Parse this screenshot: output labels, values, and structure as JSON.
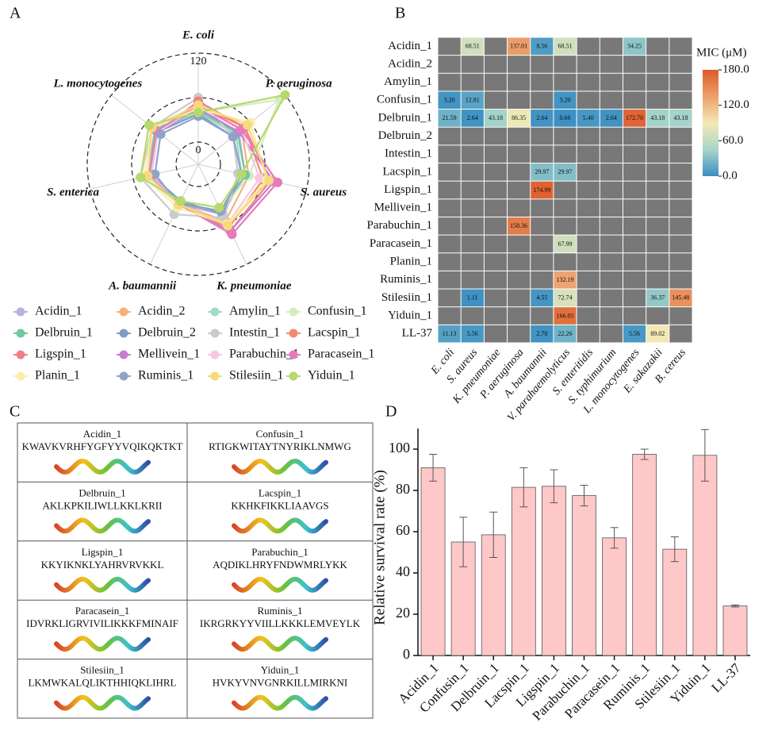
{
  "chart_data": [
    {
      "type": "radar",
      "panel_label": "A",
      "axes": [
        "E. coli",
        "P. aeruginosa",
        "S. aureus",
        "K. pneumoniae",
        "A. baumannii",
        "S. enterica",
        "L. monocytogenes"
      ],
      "rlim": [
        -30,
        120
      ],
      "rticks": [
        0,
        60,
        120
      ],
      "series": [
        {
          "name": "Acidin_1",
          "color": "#b8b2e2",
          "values": [
            45,
            40,
            35,
            45,
            30,
            40,
            45
          ]
        },
        {
          "name": "Acidin_2",
          "color": "#f6b07a",
          "values": [
            50,
            45,
            40,
            55,
            30,
            35,
            40
          ]
        },
        {
          "name": "Amylin_1",
          "color": "#9fd9c9",
          "values": [
            40,
            35,
            30,
            40,
            30,
            35,
            40
          ]
        },
        {
          "name": "Confusin_1",
          "color": "#d3ecc2",
          "values": [
            40,
            110,
            40,
            40,
            30,
            45,
            50
          ]
        },
        {
          "name": "Delbruin_1",
          "color": "#6dc9a1",
          "values": [
            42,
            38,
            35,
            40,
            28,
            38,
            45
          ]
        },
        {
          "name": "Delbruin_2",
          "color": "#7e9fc5",
          "values": [
            38,
            30,
            30,
            45,
            25,
            35,
            40
          ]
        },
        {
          "name": "Intestin_1",
          "color": "#cacaca",
          "values": [
            60,
            30,
            25,
            50,
            45,
            50,
            50
          ]
        },
        {
          "name": "Lacspin_1",
          "color": "#f58a6b",
          "values": [
            50,
            50,
            60,
            65,
            30,
            35,
            40
          ]
        },
        {
          "name": "Ligspin_1",
          "color": "#f18082",
          "values": [
            55,
            50,
            70,
            70,
            30,
            35,
            40
          ]
        },
        {
          "name": "Mellivein_1",
          "color": "#c87ed0",
          "values": [
            45,
            40,
            75,
            70,
            30,
            35,
            40
          ]
        },
        {
          "name": "Parabuchin_1",
          "color": "#f7c7e1",
          "values": [
            48,
            45,
            55,
            60,
            30,
            35,
            40
          ]
        },
        {
          "name": "Paracasein_1",
          "color": "#e77bb9",
          "values": [
            50,
            45,
            80,
            75,
            30,
            38,
            42
          ]
        },
        {
          "name": "Planin_1",
          "color": "#fbeea9",
          "values": [
            45,
            60,
            65,
            60,
            35,
            45,
            50
          ]
        },
        {
          "name": "Ruminis_1",
          "color": "#8fa3c9",
          "values": [
            35,
            30,
            30,
            40,
            30,
            30,
            35
          ]
        },
        {
          "name": "Stilesiin_1",
          "color": "#f6da7b",
          "values": [
            50,
            55,
            68,
            62,
            30,
            40,
            50
          ]
        },
        {
          "name": "Yiduin_1",
          "color": "#b6d96b",
          "values": [
            40,
            120,
            30,
            35,
            25,
            50,
            55
          ]
        }
      ]
    },
    {
      "type": "heatmap",
      "panel_label": "B",
      "colorbar_title": "MIC (μM)",
      "rows": [
        "Acidin_1",
        "Acidin_2",
        "Amylin_1",
        "Confusin_1",
        "Delbruin_1",
        "Delbruin_2",
        "Intestin_1",
        "Lacspin_1",
        "Ligspin_1",
        "Mellivein_1",
        "Parabuchin_1",
        "Paracasein_1",
        "Planin_1",
        "Ruminis_1",
        "Stilesiin_1",
        "Yiduin_1",
        "LL-37"
      ],
      "columns": [
        "E. coli",
        "S. aureus",
        "K. pneumoniae",
        "P. aeruginosa",
        "A. baumannii",
        "V. parahaemolyticus",
        "S. enteritidis",
        "S. typhimurium",
        "L. monocytogenes",
        "E. sakazakii",
        "B. cereus"
      ],
      "values": [
        [
          null,
          68.51,
          null,
          137.01,
          8.56,
          68.51,
          null,
          null,
          34.25,
          null,
          null
        ],
        [
          null,
          null,
          null,
          null,
          null,
          null,
          null,
          null,
          null,
          null,
          null
        ],
        [
          null,
          null,
          null,
          null,
          null,
          null,
          null,
          null,
          null,
          null,
          null
        ],
        [
          3.2,
          12.81,
          null,
          null,
          null,
          3.2,
          null,
          null,
          null,
          null,
          null
        ],
        [
          21.59,
          2.64,
          43.18,
          86.35,
          2.64,
          0.66,
          5.4,
          2.64,
          172.7,
          43.18,
          43.18
        ],
        [
          null,
          null,
          null,
          null,
          null,
          null,
          null,
          null,
          null,
          null,
          null
        ],
        [
          null,
          null,
          null,
          null,
          null,
          null,
          null,
          null,
          null,
          null,
          null
        ],
        [
          null,
          null,
          null,
          null,
          29.97,
          29.97,
          null,
          null,
          null,
          null,
          null
        ],
        [
          null,
          null,
          null,
          null,
          174.99,
          null,
          null,
          null,
          null,
          null,
          null
        ],
        [
          null,
          null,
          null,
          null,
          null,
          null,
          null,
          null,
          null,
          null,
          null
        ],
        [
          null,
          null,
          null,
          158.36,
          null,
          null,
          null,
          null,
          null,
          null,
          null
        ],
        [
          null,
          null,
          null,
          null,
          null,
          67.99,
          null,
          null,
          null,
          null,
          null
        ],
        [
          null,
          null,
          null,
          null,
          null,
          null,
          null,
          null,
          null,
          null,
          null
        ],
        [
          null,
          null,
          null,
          null,
          null,
          132.19,
          null,
          null,
          null,
          null,
          null
        ],
        [
          null,
          1.11,
          null,
          null,
          4.55,
          72.74,
          null,
          null,
          null,
          36.37,
          145.48
        ],
        [
          null,
          null,
          null,
          null,
          null,
          166.05,
          null,
          null,
          null,
          null,
          null
        ],
        [
          11.13,
          5.56,
          null,
          null,
          2.78,
          22.26,
          null,
          null,
          5.56,
          89.02,
          null
        ]
      ],
      "value_labels": [
        [
          null,
          "68.51",
          null,
          "137.01",
          "8.56",
          "68.51",
          null,
          null,
          "34.25",
          null,
          null
        ],
        [
          null,
          null,
          null,
          null,
          null,
          null,
          null,
          null,
          null,
          null,
          null
        ],
        [
          null,
          null,
          null,
          null,
          null,
          null,
          null,
          null,
          null,
          null,
          null
        ],
        [
          "3.20",
          "12.81",
          null,
          null,
          null,
          "3.20",
          null,
          null,
          null,
          null,
          null
        ],
        [
          "21.59",
          "2.64",
          "43.18",
          "86.35",
          "2.64",
          "0.66",
          "5.40",
          "2.64",
          "172.70",
          "43.18",
          "43.18"
        ],
        [
          null,
          null,
          null,
          null,
          null,
          null,
          null,
          null,
          null,
          null,
          null
        ],
        [
          null,
          null,
          null,
          null,
          null,
          null,
          null,
          null,
          null,
          null,
          null
        ],
        [
          null,
          null,
          null,
          null,
          "29.97",
          "29.97",
          null,
          null,
          null,
          null,
          null
        ],
        [
          null,
          null,
          null,
          null,
          "174.99",
          null,
          null,
          null,
          null,
          null,
          null
        ],
        [
          null,
          null,
          null,
          null,
          null,
          null,
          null,
          null,
          null,
          null,
          null
        ],
        [
          null,
          null,
          null,
          "158.36",
          null,
          null,
          null,
          null,
          null,
          null,
          null
        ],
        [
          null,
          null,
          null,
          null,
          null,
          "67.99",
          null,
          null,
          null,
          null,
          null
        ],
        [
          null,
          null,
          null,
          null,
          null,
          null,
          null,
          null,
          null,
          null,
          null
        ],
        [
          null,
          null,
          null,
          null,
          null,
          "132.19",
          null,
          null,
          null,
          null,
          null
        ],
        [
          null,
          "1.11",
          null,
          null,
          "4.55",
          "72.74",
          null,
          null,
          null,
          "36.37",
          "145.48"
        ],
        [
          null,
          null,
          null,
          null,
          null,
          "166.05",
          null,
          null,
          null,
          null,
          null
        ],
        [
          "11.13",
          "5.56",
          null,
          null,
          "2.78",
          "22.26",
          null,
          null,
          "5.56",
          "89.02",
          null
        ]
      ],
      "clim": [
        0,
        180
      ],
      "cticks": [
        {
          "value": 0,
          "label": "0.0"
        },
        {
          "value": 60,
          "label": "60.0"
        },
        {
          "value": 120,
          "label": "120.0"
        },
        {
          "value": 180,
          "label": "180.0"
        }
      ],
      "colormap": [
        "#3a8fc3",
        "#a8d6c9",
        "#f4e8b4",
        "#eca06b",
        "#dd5a2a"
      ],
      "missing_color": "#787878"
    },
    {
      "type": "bar",
      "panel_label": "D",
      "ylabel": "Relative survival rate (%)",
      "categories": [
        "Acidin_1",
        "Confusin_1",
        "Delbruin_1",
        "Lacspin_1",
        "Ligspin_1",
        "Parabuchin_1",
        "Paracasein_1",
        "Ruminis_1",
        "Stilesiin_1",
        "Yiduin_1",
        "LL-37"
      ],
      "values": [
        91,
        55,
        58.5,
        81.5,
        82,
        77.5,
        57,
        97.5,
        51.5,
        97,
        24
      ],
      "errors": [
        6.5,
        12,
        11,
        9.5,
        8,
        5,
        5,
        2.5,
        6,
        12.5,
        0.5
      ],
      "color": "#ffc8c8",
      "edge_color": "#555555",
      "ylim": [
        0,
        110
      ],
      "yticks": [
        0,
        20,
        40,
        60,
        80,
        100
      ]
    }
  ],
  "panel_c": {
    "panel_label": "C",
    "peptides": [
      {
        "name": "Acidin_1",
        "sequence": "KWAVKVRHFYGFYYVQIKQKTKT"
      },
      {
        "name": "Confusin_1",
        "sequence": "RTIGKWITAYTNYRIKLNMWG"
      },
      {
        "name": "Delbruin_1",
        "sequence": "AKLKPKILIWLLKKLKRII"
      },
      {
        "name": "Lacspin_1",
        "sequence": "KKHKFIKKLIAAVGS"
      },
      {
        "name": "Ligspin_1",
        "sequence": "KKYIKNKLYAHRVRVKKL"
      },
      {
        "name": "Parabuchin_1",
        "sequence": "AQDIKLHRYFNDWMRLYKK"
      },
      {
        "name": "Paracasein_1",
        "sequence": "IDVRKLIGRVIVILIKKKFMINAIF"
      },
      {
        "name": "Ruminis_1",
        "sequence": "IKRGRKYYVIILLKKKLEMVEYLK"
      },
      {
        "name": "Stilesiin_1",
        "sequence": "LKMWKALQLIKTHHIQKLIHRL"
      },
      {
        "name": "Yiduin_1",
        "sequence": "HVKYVNVGNRKILLMIRKNI"
      }
    ]
  }
}
